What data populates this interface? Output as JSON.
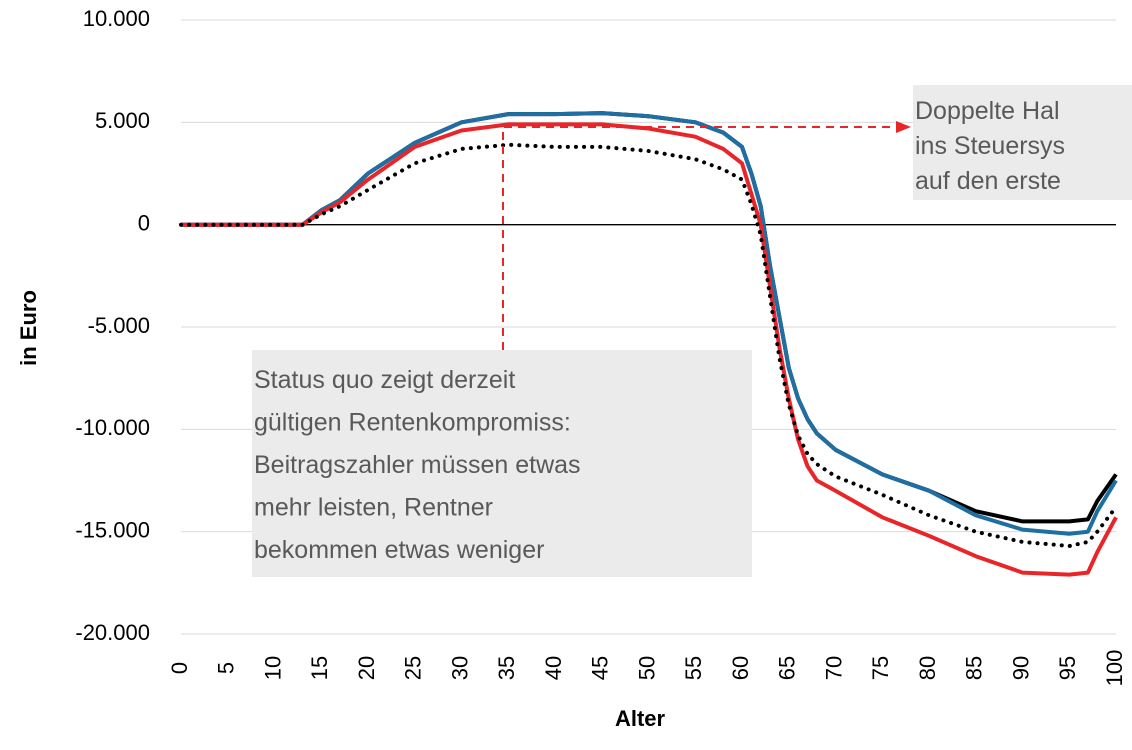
{
  "chart_data": {
    "type": "line",
    "xlabel": "Alter",
    "ylabel": "in Euro",
    "x": [
      0,
      13,
      15,
      17,
      20,
      25,
      30,
      35,
      40,
      45,
      50,
      55,
      58,
      60,
      61,
      62,
      63,
      64,
      65,
      66,
      67,
      68,
      70,
      75,
      80,
      85,
      90,
      95,
      97,
      98,
      100
    ],
    "series": [
      {
        "color": "#000000",
        "style": "solid",
        "values": [
          0,
          0,
          700,
          1200,
          2500,
          4000,
          5000,
          5400,
          5400,
          5450,
          5300,
          5000,
          4500,
          3800,
          2500,
          900,
          -2000,
          -4500,
          -7000,
          -8500,
          -9500,
          -10200,
          -11000,
          -12200,
          -13000,
          -14000,
          -14500,
          -14500,
          -14400,
          -13500,
          -12200
        ]
      },
      {
        "color": "#1f6fa3",
        "style": "solid",
        "values": [
          0,
          0,
          700,
          1200,
          2500,
          4000,
          5000,
          5400,
          5400,
          5450,
          5300,
          5000,
          4500,
          3800,
          2500,
          900,
          -2000,
          -4500,
          -7000,
          -8500,
          -9500,
          -10200,
          -11000,
          -12200,
          -13000,
          -14200,
          -14900,
          -15100,
          -15000,
          -14000,
          -12500
        ]
      },
      {
        "color": "#e8262a",
        "style": "solid",
        "values": [
          0,
          0,
          600,
          1100,
          2200,
          3800,
          4600,
          4900,
          4900,
          4900,
          4700,
          4300,
          3700,
          3000,
          1500,
          0,
          -3000,
          -6000,
          -8500,
          -10500,
          -11800,
          -12500,
          -13000,
          -14300,
          -15200,
          -16200,
          -17000,
          -17100,
          -17000,
          -16000,
          -14300
        ]
      },
      {
        "color": "#000000",
        "style": "dotted",
        "values": [
          0,
          0,
          500,
          900,
          1700,
          3000,
          3700,
          3900,
          3800,
          3800,
          3600,
          3200,
          2700,
          2200,
          1000,
          -500,
          -3500,
          -6500,
          -8800,
          -10300,
          -11200,
          -11700,
          -12300,
          -13200,
          -14200,
          -15000,
          -15500,
          -15700,
          -15500,
          -15000,
          -13800
        ]
      }
    ],
    "xlim": [
      0,
      100
    ],
    "xticks": [
      0,
      5,
      10,
      15,
      20,
      25,
      30,
      35,
      40,
      45,
      50,
      55,
      60,
      65,
      70,
      75,
      80,
      85,
      90,
      95,
      100
    ],
    "ylim": [
      -20000,
      10000
    ],
    "yticks": [
      {
        "value": -20000,
        "label": "-20.000"
      },
      {
        "value": -15000,
        "label": "-15.000"
      },
      {
        "value": -10000,
        "label": "-10.000"
      },
      {
        "value": -5000,
        "label": "-5.000"
      },
      0,
      {
        "value": 5000,
        "label": "5.000"
      },
      {
        "value": 10000,
        "label": "10.000"
      }
    ],
    "grid": true,
    "annotations": [
      {
        "lines": [
          "Doppelte Hal",
          "ins Steuersys",
          "auf den erste"
        ]
      },
      {
        "lines": [
          "Status quo zeigt derzeit",
          "gültigen Rentenkompromiss:",
          "Beitragszahler müssen etwas",
          "mehr leisten, Rentner",
          "bekommen etwas weniger"
        ]
      }
    ]
  }
}
